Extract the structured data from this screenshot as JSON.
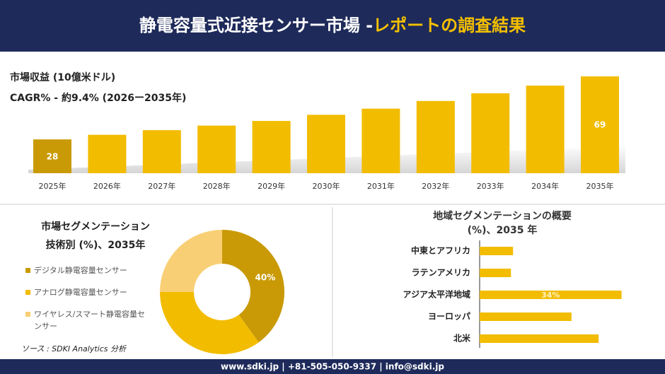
{
  "header": {
    "title": "静電容量式近接センサー市場 -",
    "title_highlight": "レポートの調査結果"
  },
  "chart_data": [
    {
      "type": "bar",
      "title": "市場収益 (10億米ドル)",
      "subtitle": "CAGR% - 約9.4% (2026ー2035年)",
      "categories": [
        "2025年",
        "2026年",
        "2027年",
        "2028年",
        "2029年",
        "2030年",
        "2031年",
        "2032年",
        "2033年",
        "2034年",
        "2035年"
      ],
      "values": [
        28,
        31,
        34,
        37,
        40,
        44,
        48,
        53,
        58,
        63,
        69
      ],
      "value_labels": [
        "28",
        null,
        null,
        null,
        null,
        null,
        null,
        null,
        null,
        null,
        "69"
      ],
      "ylim": [
        6,
        75
      ],
      "color": "#f2bc00"
    },
    {
      "type": "donut",
      "title": "市場セグメンテーション",
      "subtitle": "技術別 (%)、2035年",
      "categories": [
        "デジタル静電容量センサー",
        "アナログ静電容量センサー",
        "ワイヤレス/スマート静電容量センサー"
      ],
      "values": [
        40,
        35,
        25
      ],
      "value_labels": [
        "40%",
        null,
        null
      ],
      "colors": [
        "#c99a06",
        "#f2bc00",
        "#f9cf75"
      ]
    },
    {
      "type": "barh",
      "title": "地域セグメンテーションの概要 (%)、2035 年",
      "categories": [
        "中東とアフリカ",
        "ラテンアメリカ",
        "アジア太平洋地域",
        "ヨーロッパ",
        "北米"
      ],
      "values": [
        8,
        7.5,
        34,
        22,
        28.5
      ],
      "value_labels": [
        null,
        null,
        "34%",
        null,
        null
      ],
      "xlim": [
        0,
        40
      ],
      "color": "#f2bc00"
    }
  ],
  "source": "ソース : SDKI Analytics 分析",
  "footer": "www.sdki.jp | +81-505-050-9337 | info@sdki.jp"
}
